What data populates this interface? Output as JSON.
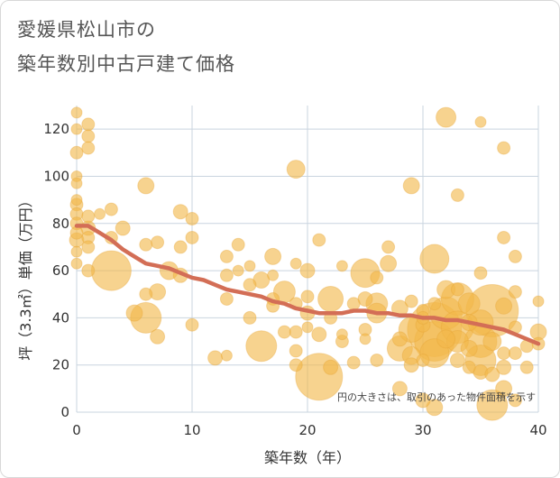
{
  "title_line1": "愛媛県松山市の",
  "title_line2": "築年数別中古戸建て価格",
  "colors": {
    "bubble": "#f2b84b",
    "trend": "#d36e56",
    "grid": "#c9d4df"
  },
  "chart_data": {
    "type": "scatter",
    "xlabel": "築年数（年）",
    "ylabel": "坪（3.3㎡）単価（万円）",
    "xlim": [
      0,
      40
    ],
    "ylim": [
      0,
      130
    ],
    "xticks": [
      "0",
      "10",
      "20",
      "30",
      "40"
    ],
    "yticks": [
      "0",
      "20",
      "40",
      "60",
      "80",
      "100",
      "120"
    ],
    "note": "円の大きさは、取引のあった物件面積を示す",
    "trend": [
      [
        0,
        79
      ],
      [
        1,
        79
      ],
      [
        2,
        76
      ],
      [
        3,
        73
      ],
      [
        4,
        69
      ],
      [
        5,
        66
      ],
      [
        6,
        63
      ],
      [
        7,
        62
      ],
      [
        8,
        61
      ],
      [
        9,
        59
      ],
      [
        10,
        57
      ],
      [
        11,
        56
      ],
      [
        12,
        54
      ],
      [
        13,
        52
      ],
      [
        14,
        51
      ],
      [
        15,
        50
      ],
      [
        16,
        49
      ],
      [
        17,
        47
      ],
      [
        18,
        46
      ],
      [
        19,
        44
      ],
      [
        20,
        43
      ],
      [
        21,
        42
      ],
      [
        22,
        42
      ],
      [
        23,
        42
      ],
      [
        24,
        43
      ],
      [
        25,
        43
      ],
      [
        26,
        42
      ],
      [
        27,
        42
      ],
      [
        28,
        41
      ],
      [
        29,
        41
      ],
      [
        30,
        40
      ],
      [
        31,
        40
      ],
      [
        32,
        39
      ],
      [
        33,
        39
      ],
      [
        34,
        38
      ],
      [
        35,
        37
      ],
      [
        36,
        36
      ],
      [
        37,
        35
      ],
      [
        38,
        33
      ],
      [
        39,
        31
      ],
      [
        40,
        29
      ]
    ],
    "points": [
      [
        0,
        127,
        6
      ],
      [
        0,
        120,
        6
      ],
      [
        0,
        110,
        7
      ],
      [
        0,
        100,
        6
      ],
      [
        0,
        97,
        6
      ],
      [
        0,
        90,
        6
      ],
      [
        0,
        88,
        7
      ],
      [
        0,
        84,
        7
      ],
      [
        0,
        80,
        7
      ],
      [
        0,
        76,
        7
      ],
      [
        0,
        73,
        8
      ],
      [
        0,
        68,
        6
      ],
      [
        0,
        63,
        6
      ],
      [
        1,
        122,
        7
      ],
      [
        1,
        117,
        7
      ],
      [
        1,
        112,
        7
      ],
      [
        1,
        83,
        7
      ],
      [
        1,
        78,
        8
      ],
      [
        1,
        74,
        7
      ],
      [
        1,
        70,
        7
      ],
      [
        1,
        60,
        7
      ],
      [
        2,
        84,
        6
      ],
      [
        3,
        86,
        7
      ],
      [
        3,
        74,
        7
      ],
      [
        3,
        60,
        22
      ],
      [
        4,
        78,
        8
      ],
      [
        5,
        42,
        9
      ],
      [
        6,
        96,
        9
      ],
      [
        6,
        71,
        7
      ],
      [
        6,
        50,
        7
      ],
      [
        6,
        40,
        17
      ],
      [
        7,
        72,
        7
      ],
      [
        7,
        51,
        9
      ],
      [
        7,
        32,
        8
      ],
      [
        8,
        60,
        10
      ],
      [
        9,
        85,
        8
      ],
      [
        9,
        70,
        7
      ],
      [
        9,
        58,
        8
      ],
      [
        10,
        82,
        7
      ],
      [
        10,
        74,
        7
      ],
      [
        10,
        37,
        7
      ],
      [
        12,
        23,
        8
      ],
      [
        13,
        66,
        7
      ],
      [
        13,
        58,
        7
      ],
      [
        13,
        48,
        7
      ],
      [
        13,
        24,
        6
      ],
      [
        14,
        71,
        7
      ],
      [
        14,
        60,
        6
      ],
      [
        15,
        62,
        6
      ],
      [
        15,
        40,
        7
      ],
      [
        15,
        54,
        7
      ],
      [
        16,
        28,
        17
      ],
      [
        16,
        56,
        9
      ],
      [
        17,
        66,
        9
      ],
      [
        17,
        58,
        6
      ],
      [
        17,
        48,
        7
      ],
      [
        17,
        45,
        7
      ],
      [
        18,
        51,
        12
      ],
      [
        18,
        34,
        7
      ],
      [
        19,
        63,
        6
      ],
      [
        19,
        46,
        7
      ],
      [
        19,
        34,
        7
      ],
      [
        19,
        26,
        7
      ],
      [
        19,
        20,
        7
      ],
      [
        19,
        103,
        10
      ],
      [
        20,
        60,
        8
      ],
      [
        20,
        49,
        7
      ],
      [
        20,
        42,
        8
      ],
      [
        20,
        36,
        6
      ],
      [
        21,
        73,
        7
      ],
      [
        21,
        33,
        8
      ],
      [
        21,
        15,
        26
      ],
      [
        22,
        48,
        14
      ],
      [
        22,
        19,
        8
      ],
      [
        22,
        40,
        7
      ],
      [
        23,
        30,
        7
      ],
      [
        23,
        33,
        6
      ],
      [
        23,
        62,
        6
      ],
      [
        24,
        46,
        7
      ],
      [
        24,
        21,
        7
      ],
      [
        25,
        59,
        16
      ],
      [
        25,
        48,
        8
      ],
      [
        25,
        35,
        7
      ],
      [
        25,
        31,
        6
      ],
      [
        26,
        46,
        12
      ],
      [
        26,
        42,
        11
      ],
      [
        26,
        22,
        7
      ],
      [
        26,
        57,
        7
      ],
      [
        27,
        70,
        7
      ],
      [
        27,
        63,
        9
      ],
      [
        28,
        44,
        9
      ],
      [
        28,
        31,
        8
      ],
      [
        28,
        27,
        14
      ],
      [
        28,
        10,
        8
      ],
      [
        29,
        96,
        9
      ],
      [
        29,
        35,
        14
      ],
      [
        29,
        24,
        10
      ],
      [
        29,
        20,
        8
      ],
      [
        29,
        47,
        7
      ],
      [
        30,
        43,
        7
      ],
      [
        30,
        40,
        7
      ],
      [
        30,
        37,
        8
      ],
      [
        30,
        22,
        7
      ],
      [
        30,
        5,
        8
      ],
      [
        31,
        65,
        16
      ],
      [
        31,
        46,
        7
      ],
      [
        31,
        35,
        30
      ],
      [
        31,
        30,
        22
      ],
      [
        31,
        25,
        16
      ],
      [
        31,
        2,
        9
      ],
      [
        32,
        125,
        11
      ],
      [
        32,
        52,
        10
      ],
      [
        32,
        42,
        18
      ],
      [
        32,
        31,
        10
      ],
      [
        33,
        92,
        7
      ],
      [
        33,
        52,
        7
      ],
      [
        33,
        48,
        18
      ],
      [
        33,
        36,
        18
      ],
      [
        33,
        30,
        12
      ],
      [
        33,
        22,
        8
      ],
      [
        34,
        46,
        12
      ],
      [
        34,
        38,
        9
      ],
      [
        34,
        27,
        9
      ],
      [
        34,
        19,
        7
      ],
      [
        35,
        123,
        6
      ],
      [
        35,
        59,
        7
      ],
      [
        35,
        38,
        14
      ],
      [
        35,
        30,
        18
      ],
      [
        35,
        22,
        17
      ],
      [
        35,
        17,
        8
      ],
      [
        36,
        43,
        29
      ],
      [
        36,
        3,
        17
      ],
      [
        36,
        16,
        8
      ],
      [
        36,
        30,
        10
      ],
      [
        37,
        112,
        7
      ],
      [
        37,
        74,
        7
      ],
      [
        37,
        45,
        9
      ],
      [
        37,
        25,
        7
      ],
      [
        37,
        19,
        8
      ],
      [
        37,
        10,
        9
      ],
      [
        38,
        66,
        7
      ],
      [
        38,
        51,
        7
      ],
      [
        38,
        36,
        7
      ],
      [
        38,
        25,
        7
      ],
      [
        38,
        5,
        7
      ],
      [
        39,
        28,
        7
      ],
      [
        39,
        19,
        7
      ],
      [
        40,
        47,
        6
      ],
      [
        40,
        34,
        9
      ],
      [
        40,
        29,
        7
      ]
    ]
  }
}
